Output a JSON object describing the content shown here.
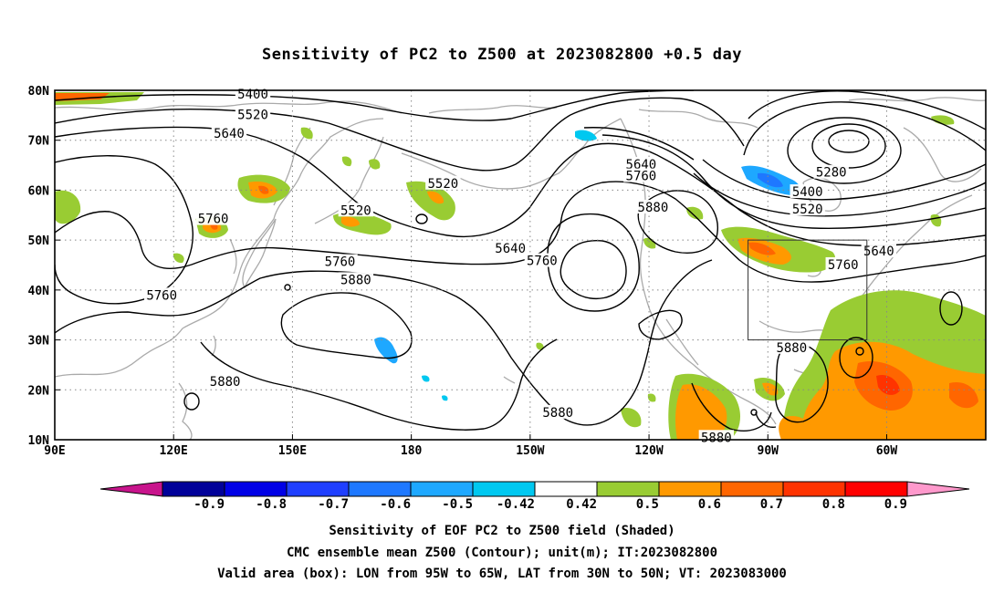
{
  "title": "Sensitivity of PC2 to Z500 at 2023082800 +0.5 day",
  "axes": {
    "lat_ticks": [
      {
        "value": 80,
        "label": "80N"
      },
      {
        "value": 70,
        "label": "70N"
      },
      {
        "value": 60,
        "label": "60N"
      },
      {
        "value": 50,
        "label": "50N"
      },
      {
        "value": 40,
        "label": "40N"
      },
      {
        "value": 30,
        "label": "30N"
      },
      {
        "value": 20,
        "label": "20N"
      },
      {
        "value": 10,
        "label": "10N"
      }
    ],
    "lon_ticks": [
      {
        "value": 90,
        "label": "90E"
      },
      {
        "value": 120,
        "label": "120E"
      },
      {
        "value": 150,
        "label": "150E"
      },
      {
        "value": 180,
        "label": "180"
      },
      {
        "value": 210,
        "label": "150W"
      },
      {
        "value": 240,
        "label": "120W"
      },
      {
        "value": 270,
        "label": "90W"
      },
      {
        "value": 300,
        "label": "60W"
      }
    ],
    "lon_range": [
      90,
      325
    ],
    "lat_range": [
      10,
      80
    ],
    "grid": "dotted"
  },
  "valid_box": {
    "lon_from": 265,
    "lon_to": 295,
    "lat_from": 30,
    "lat_to": 50
  },
  "contour_labels": [
    {
      "text": "5400",
      "lon": 140,
      "lat": 79.3
    },
    {
      "text": "5520",
      "lon": 140,
      "lat": 75.2
    },
    {
      "text": "5640",
      "lon": 134,
      "lat": 71.4
    },
    {
      "text": "5760",
      "lon": 130,
      "lat": 54.3
    },
    {
      "text": "5760",
      "lon": 162,
      "lat": 45.7
    },
    {
      "text": "5880",
      "lon": 166,
      "lat": 42.1
    },
    {
      "text": "5760",
      "lon": 117,
      "lat": 39.0
    },
    {
      "text": "5880",
      "lon": 133,
      "lat": 21.7
    },
    {
      "text": "5520",
      "lon": 188,
      "lat": 61.4
    },
    {
      "text": "5520",
      "lon": 166,
      "lat": 56.0
    },
    {
      "text": "5640",
      "lon": 205,
      "lat": 48.4
    },
    {
      "text": "5760",
      "lon": 213,
      "lat": 45.9
    },
    {
      "text": "5640",
      "lon": 238,
      "lat": 65.2
    },
    {
      "text": "5760",
      "lon": 238,
      "lat": 62.9
    },
    {
      "text": "5880",
      "lon": 241,
      "lat": 56.6
    },
    {
      "text": "5280",
      "lon": 286,
      "lat": 63.6
    },
    {
      "text": "5400",
      "lon": 280,
      "lat": 59.7
    },
    {
      "text": "5520",
      "lon": 280,
      "lat": 56.2
    },
    {
      "text": "5640",
      "lon": 298,
      "lat": 47.8
    },
    {
      "text": "5760",
      "lon": 289,
      "lat": 45.1
    },
    {
      "text": "5880",
      "lon": 276,
      "lat": 28.5
    },
    {
      "text": "5880",
      "lon": 217,
      "lat": 15.5
    },
    {
      "text": "5880",
      "lon": 257,
      "lat": 10.5
    }
  ],
  "colorbar": {
    "labels": [
      "-0.9",
      "-0.8",
      "-0.7",
      "-0.6",
      "-0.5",
      "-0.42",
      "0.42",
      "0.5",
      "0.6",
      "0.7",
      "0.8",
      "0.9"
    ],
    "colors": [
      "#000099",
      "#0000e6",
      "#1f3fff",
      "#1e78ff",
      "#1ea8ff",
      "#00c8f0",
      "#ffffff",
      "#99cc33",
      "#ff9900",
      "#ff6600",
      "#ff3300",
      "#ff0000"
    ],
    "low_end_color": "#c8148c",
    "high_end_color": "#ff99cc"
  },
  "captions": [
    "Sensitivity of EOF PC2 to Z500 field (Shaded)",
    "CMC ensemble mean Z500 (Contour); unit(m); IT:2023082800",
    "Valid area (box): LON from 95W to 65W, LAT from 30N to 50N; VT: 2023083000"
  ]
}
